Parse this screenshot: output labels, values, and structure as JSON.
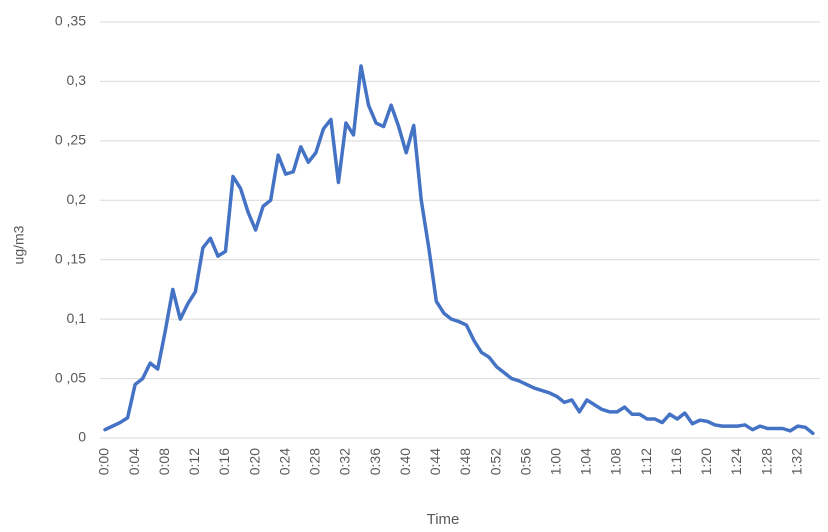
{
  "chart_data": {
    "type": "line",
    "y_label": "ug/m3",
    "x_label": "Time",
    "categories": [
      "0:00",
      null,
      null,
      null,
      "0:04",
      null,
      null,
      null,
      "0:08",
      null,
      null,
      null,
      "0:12",
      null,
      null,
      null,
      "0:16",
      null,
      null,
      null,
      "0:20",
      null,
      null,
      null,
      "0:24",
      null,
      null,
      null,
      "0:28",
      null,
      null,
      null,
      "0:32",
      null,
      null,
      null,
      "0:36",
      null,
      null,
      null,
      "0:40",
      null,
      null,
      null,
      "0:44",
      null,
      null,
      null,
      "0:48",
      null,
      null,
      null,
      "0:52",
      null,
      null,
      null,
      "0:56",
      null,
      null,
      null,
      "1:00",
      null,
      null,
      null,
      "1:04",
      null,
      null,
      null,
      "1:08",
      null,
      null,
      null,
      "1:12",
      null,
      null,
      null,
      "1:16",
      null,
      null,
      null,
      "1:20",
      null,
      null,
      null,
      "1:24",
      null,
      null,
      null,
      "1:28",
      null,
      null,
      null,
      "1:32",
      null,
      null
    ],
    "values": [
      0.007,
      0.01,
      0.013,
      0.017,
      0.045,
      0.05,
      0.063,
      0.058,
      0.09,
      0.125,
      0.1,
      0.113,
      0.123,
      0.16,
      0.168,
      0.153,
      0.157,
      0.22,
      0.21,
      0.19,
      0.175,
      0.195,
      0.2,
      0.238,
      0.222,
      0.224,
      0.245,
      0.232,
      0.24,
      0.26,
      0.268,
      0.215,
      0.265,
      0.255,
      0.313,
      0.28,
      0.265,
      0.262,
      0.28,
      0.262,
      0.24,
      0.263,
      0.2,
      0.16,
      0.115,
      0.105,
      0.1,
      0.098,
      0.095,
      0.082,
      0.072,
      0.068,
      0.06,
      0.055,
      0.05,
      0.048,
      0.045,
      0.042,
      0.04,
      0.038,
      0.035,
      0.03,
      0.032,
      0.022,
      0.032,
      0.028,
      0.024,
      0.022,
      0.022,
      0.026,
      0.02,
      0.02,
      0.016,
      0.016,
      0.013,
      0.02,
      0.016,
      0.021,
      0.012,
      0.015,
      0.014,
      0.011,
      0.01,
      0.01,
      0.01,
      0.011,
      0.007,
      0.01,
      0.008,
      0.008,
      0.008,
      0.006,
      0.01,
      0.009,
      0.004
    ],
    "color": "#4472c4",
    "ylim": [
      0,
      0.35
    ],
    "yticks": [
      {
        "value": 0,
        "label": "0"
      },
      {
        "value": 0.05,
        "label": "0 ,05"
      },
      {
        "value": 0.1,
        "label": "0,1"
      },
      {
        "value": 0.15,
        "label": "0 ,15"
      },
      {
        "value": 0.2,
        "label": "0,2"
      },
      {
        "value": 0.25,
        "label": "0 ,25"
      },
      {
        "value": 0.3,
        "label": "0,3"
      },
      {
        "value": 0.35,
        "label": "0 ,35"
      }
    ],
    "grid": true
  }
}
